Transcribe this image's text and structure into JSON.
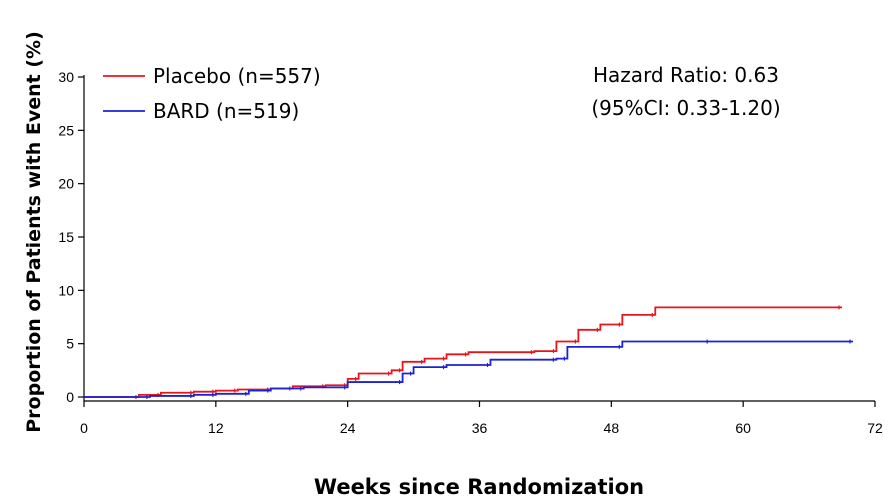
{
  "chart_data": {
    "type": "line",
    "title": "",
    "xlabel": "Weeks since Randomization",
    "ylabel": "Proportion of Patients with Event (%)",
    "xlim": [
      0,
      72
    ],
    "ylim": [
      0,
      30
    ],
    "xticks": [
      "0",
      "12",
      "24",
      "36",
      "48",
      "60",
      "72"
    ],
    "yticks": [
      "0",
      "5",
      "10",
      "15",
      "20",
      "25",
      "30"
    ],
    "legend_position": "top-left",
    "grid": false,
    "annotation": [
      "Hazard Ratio: 0.63",
      "(95%CI: 0.33-1.20)"
    ],
    "series": [
      {
        "name": "Placebo (n=557)",
        "color": "#e8141b",
        "x": [
          0,
          5,
          7,
          10,
          12,
          14,
          17,
          19,
          22,
          24,
          25,
          28,
          29,
          31,
          33,
          35,
          41,
          43,
          45,
          47,
          49,
          52,
          69
        ],
        "y": [
          0,
          0.2,
          0.4,
          0.5,
          0.6,
          0.7,
          0.8,
          1.0,
          1.1,
          1.7,
          2.2,
          2.5,
          3.3,
          3.6,
          4.0,
          4.2,
          4.3,
          5.2,
          6.3,
          6.8,
          7.7,
          8.4,
          8.4
        ]
      },
      {
        "name": "BARD (n=519)",
        "color": "#1c22d4",
        "x": [
          0,
          6,
          10,
          12,
          15,
          17,
          20,
          24,
          29,
          30,
          33,
          37,
          43,
          44,
          49,
          57,
          70
        ],
        "y": [
          0,
          0.1,
          0.2,
          0.3,
          0.6,
          0.8,
          0.9,
          1.4,
          2.2,
          2.8,
          3.0,
          3.5,
          3.6,
          4.7,
          5.2,
          5.2,
          5.2
        ]
      }
    ]
  }
}
